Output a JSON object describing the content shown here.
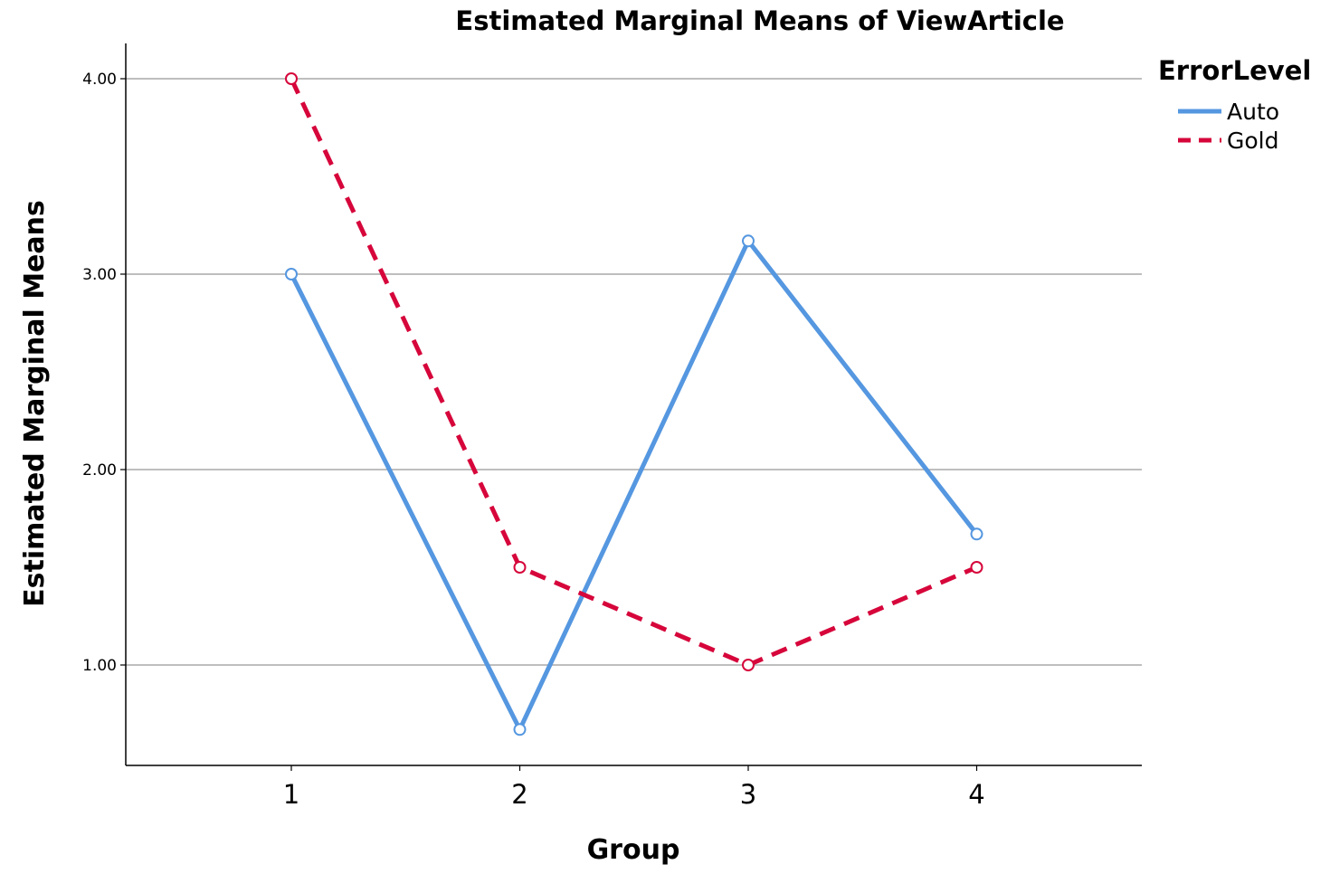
{
  "chart_data": {
    "type": "line",
    "title": "Estimated Marginal Means of ViewArticle",
    "xlabel": "Group",
    "ylabel": "Estimated Marginal Means",
    "categories": [
      "1",
      "2",
      "3",
      "4"
    ],
    "yticks": [
      "1.00",
      "2.00",
      "3.00",
      "4.00"
    ],
    "ylim": [
      0.5,
      4.2
    ],
    "grid": "horizontal",
    "legend_title": "ErrorLevel",
    "legend_position": "top-right",
    "series": [
      {
        "name": "Auto",
        "values": [
          3.0,
          0.67,
          3.17,
          1.67
        ],
        "color": "#5597e0",
        "style": "solid"
      },
      {
        "name": "Gold",
        "values": [
          4.0,
          1.5,
          1.0,
          1.5
        ],
        "color": "#d6063b",
        "style": "dashed"
      }
    ]
  }
}
